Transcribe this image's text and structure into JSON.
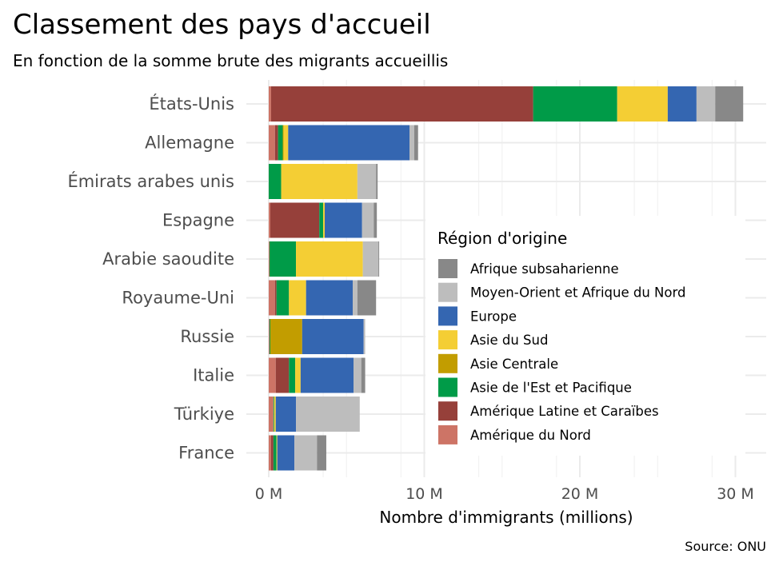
{
  "chart_data": {
    "type": "bar",
    "orientation": "horizontal",
    "stacked": true,
    "title": "Classement des pays d'accueil",
    "subtitle": "En fonction de la somme brute des migrants accueillis",
    "xlabel": "Nombre d'immigrants (millions)",
    "ylabel": "",
    "caption": "Source: ONU",
    "xlim": [
      0,
      31
    ],
    "xticks": [
      0,
      10,
      20,
      30
    ],
    "xtick_labels": [
      "0 M",
      "10 M",
      "20 M",
      "30 M"
    ],
    "grid": true,
    "legend": {
      "title": "Région d'origine",
      "position": "inside-right"
    },
    "categories": [
      "États-Unis",
      "Allemagne",
      "Émirats arabes unis",
      "Espagne",
      "Arabie saoudite",
      "Royaume-Uni",
      "Russie",
      "Italie",
      "Türkiye",
      "France"
    ],
    "series": [
      {
        "name": "Amérique du Nord",
        "color": "#cd7466",
        "values": [
          0.15,
          0.4,
          0.0,
          0.1,
          0.05,
          0.4,
          0.05,
          0.45,
          0.3,
          0.15
        ]
      },
      {
        "name": "Amérique Latine et Caraïbes",
        "color": "#96403a",
        "values": [
          16.85,
          0.2,
          0.0,
          3.15,
          0.0,
          0.1,
          0.0,
          0.85,
          0.0,
          0.15
        ]
      },
      {
        "name": "Asie de l'Est et Pacifique",
        "color": "#009b48",
        "values": [
          5.4,
          0.3,
          0.8,
          0.25,
          1.7,
          0.8,
          0.05,
          0.4,
          0.05,
          0.2
        ]
      },
      {
        "name": "Asie Centrale",
        "color": "#c29d00",
        "values": [
          0.0,
          0.05,
          0.0,
          0.0,
          0.0,
          0.0,
          2.05,
          0.0,
          0.0,
          0.0
        ]
      },
      {
        "name": "Asie du Sud",
        "color": "#f4ce34",
        "values": [
          3.25,
          0.3,
          4.9,
          0.1,
          4.3,
          1.1,
          0.0,
          0.35,
          0.1,
          0.05
        ]
      },
      {
        "name": "Europe",
        "color": "#3466b1",
        "values": [
          1.85,
          7.8,
          0.0,
          2.4,
          0.0,
          3.0,
          3.95,
          3.4,
          1.3,
          1.1
        ]
      },
      {
        "name": "Moyen-Orient et Afrique du Nord",
        "color": "#bdbdbd",
        "values": [
          1.2,
          0.3,
          1.2,
          0.75,
          1.0,
          0.3,
          0.1,
          0.5,
          4.1,
          1.45
        ]
      },
      {
        "name": "Afrique subsaharienne",
        "color": "#888888",
        "values": [
          1.8,
          0.25,
          0.1,
          0.2,
          0.05,
          1.2,
          0.0,
          0.25,
          0.0,
          0.6
        ]
      }
    ],
    "legend_order": [
      "Afrique subsaharienne",
      "Moyen-Orient et Afrique du Nord",
      "Europe",
      "Asie du Sud",
      "Asie Centrale",
      "Asie de l'Est et Pacifique",
      "Amérique Latine et Caraïbes",
      "Amérique du Nord"
    ]
  }
}
